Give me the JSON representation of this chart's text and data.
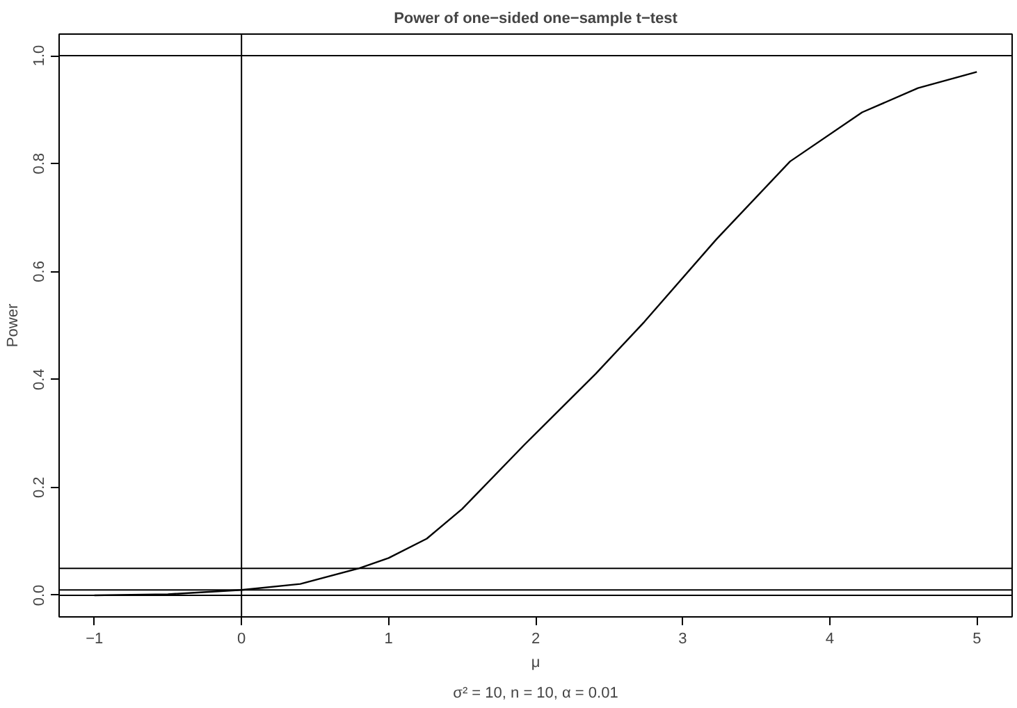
{
  "chart_data": {
    "type": "line",
    "title": "Power of one−sided one−sample t−test",
    "xlabel": "μ",
    "ylabel": "Power",
    "annotations": [
      "σ² = 10, n = 10, α = 0.01"
    ],
    "x": [
      -1,
      -0.5,
      0,
      0.4,
      0.8,
      1,
      1.26,
      1.5,
      1.92,
      2.41,
      2.74,
      3.23,
      3.73,
      4.22,
      4.6,
      5
    ],
    "series": [
      {
        "color": "#000000",
        "values": [
          0.0,
          0.002,
          0.01,
          0.021,
          0.05,
          0.069,
          0.105,
          0.16,
          0.278,
          0.411,
          0.507,
          0.66,
          0.804,
          0.895,
          0.94,
          0.97
        ]
      }
    ],
    "xlim": [
      -1.24,
      5.24
    ],
    "ylim": [
      -0.04,
      1.04
    ],
    "xticks": [
      {
        "value": -1,
        "label": "−1"
      },
      0,
      1,
      2,
      3,
      4,
      5
    ],
    "yticks": [
      {
        "value": 0,
        "label": "0.0"
      },
      {
        "value": 0.2,
        "label": "0.2"
      },
      {
        "value": 0.4,
        "label": "0.4"
      },
      {
        "value": 0.6,
        "label": "0.6"
      },
      {
        "value": 0.8,
        "label": "0.8"
      },
      {
        "value": 1,
        "label": "1.0"
      }
    ],
    "ref_lines": [
      {
        "axis": "y",
        "value": 1,
        "label": null
      },
      {
        "axis": "y",
        "value": 0.05,
        "label": null
      },
      {
        "axis": "y",
        "value": 0.01,
        "label": null
      },
      {
        "axis": "y",
        "value": 0,
        "label": null
      },
      {
        "axis": "x",
        "value": 0,
        "label": null
      }
    ],
    "grid": false,
    "marker": "none",
    "line_style": "solid"
  }
}
